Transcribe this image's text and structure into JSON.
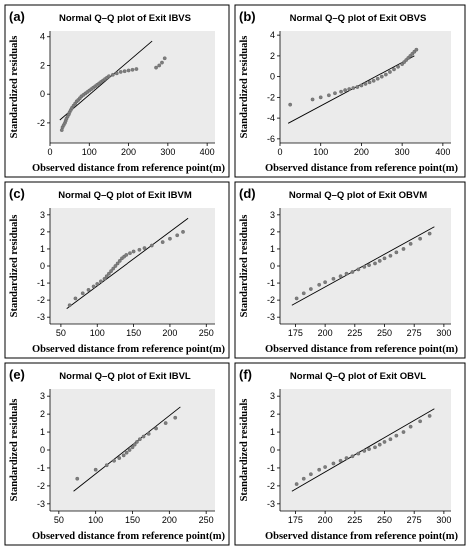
{
  "chart_data": [
    {
      "type": "scatter",
      "panel_label": "(a)",
      "title": "Normal Q–Q plot of Exit IBVS",
      "xlabel": "Observed distance from reference point(m)",
      "ylabel": "Standardized residuals",
      "xticks": [
        0,
        100,
        200,
        300,
        400
      ],
      "yticks": [
        -2,
        0,
        2,
        4
      ],
      "xlim": [
        0,
        420
      ],
      "ylim": [
        -3.4,
        4.4
      ],
      "line": {
        "x": [
          25,
          260
        ],
        "y": [
          -1.8,
          3.7
        ]
      },
      "x": [
        30,
        32,
        35,
        38,
        40,
        42,
        45,
        48,
        50,
        53,
        56,
        60,
        64,
        68,
        72,
        76,
        80,
        85,
        90,
        95,
        100,
        105,
        110,
        115,
        120,
        125,
        130,
        135,
        140,
        145,
        150,
        160,
        170,
        180,
        190,
        200,
        210,
        220,
        270,
        278,
        285,
        292
      ],
      "y": [
        -2.5,
        -2.3,
        -2.15,
        -2.0,
        -1.85,
        -1.7,
        -1.55,
        -1.4,
        -1.25,
        -1.1,
        -0.95,
        -0.8,
        -0.65,
        -0.5,
        -0.4,
        -0.28,
        -0.15,
        -0.05,
        0.05,
        0.15,
        0.25,
        0.35,
        0.45,
        0.55,
        0.65,
        0.75,
        0.85,
        0.95,
        1.05,
        1.15,
        1.25,
        1.35,
        1.45,
        1.55,
        1.6,
        1.65,
        1.7,
        1.75,
        1.85,
        2.0,
        2.2,
        2.5
      ]
    },
    {
      "type": "scatter",
      "panel_label": "(b)",
      "title": "Normal Q–Q plot of Exit OBVS",
      "xlabel": "Observed distance from reference point(m)",
      "ylabel": "Standardized residuals",
      "xticks": [
        0,
        100,
        200,
        300,
        400
      ],
      "yticks": [
        -6,
        -4,
        -2,
        0,
        2,
        4
      ],
      "xlim": [
        0,
        420
      ],
      "ylim": [
        -6.4,
        4.4
      ],
      "line": {
        "x": [
          20,
          330
        ],
        "y": [
          -4.5,
          2.0
        ]
      },
      "x": [
        25,
        80,
        100,
        120,
        135,
        150,
        160,
        170,
        180,
        190,
        200,
        210,
        220,
        230,
        240,
        250,
        260,
        270,
        280,
        290,
        300,
        305,
        310,
        315,
        320,
        325,
        330,
        335
      ],
      "y": [
        -2.7,
        -2.2,
        -2.0,
        -1.8,
        -1.6,
        -1.45,
        -1.3,
        -1.2,
        -1.1,
        -1.0,
        -0.85,
        -0.7,
        -0.55,
        -0.4,
        -0.2,
        0.0,
        0.2,
        0.45,
        0.7,
        0.95,
        1.2,
        1.4,
        1.6,
        1.8,
        2.0,
        2.2,
        2.4,
        2.6
      ]
    },
    {
      "type": "scatter",
      "panel_label": "(c)",
      "title": "Normal Q–Q plot of Exit IBVM",
      "xlabel": "Observed distance from reference point(m)",
      "ylabel": "Standardized residuals",
      "xticks": [
        50,
        100,
        150,
        200,
        250
      ],
      "yticks": [
        -3,
        -2,
        -1,
        0,
        1,
        2,
        3
      ],
      "xlim": [
        35,
        262
      ],
      "ylim": [
        -3.4,
        3.4
      ],
      "line": {
        "x": [
          58,
          225
        ],
        "y": [
          -2.5,
          2.8
        ]
      },
      "x": [
        62,
        70,
        80,
        88,
        95,
        100,
        105,
        110,
        113,
        116,
        119,
        122,
        125,
        128,
        131,
        134,
        137,
        140,
        145,
        150,
        158,
        165,
        175,
        190,
        200,
        210,
        218
      ],
      "y": [
        -2.3,
        -1.9,
        -1.6,
        -1.4,
        -1.2,
        -1.05,
        -0.9,
        -0.75,
        -0.6,
        -0.45,
        -0.3,
        -0.15,
        0.0,
        0.15,
        0.3,
        0.45,
        0.55,
        0.65,
        0.75,
        0.85,
        0.95,
        1.05,
        1.2,
        1.4,
        1.6,
        1.8,
        2.0
      ]
    },
    {
      "type": "scatter",
      "panel_label": "(d)",
      "title": "Normal Q–Q plot of Exit OBVM",
      "xlabel": "Observed distance from reference point(m)",
      "ylabel": "Standardized residuals",
      "xticks": [
        175,
        200,
        225,
        250,
        275,
        300
      ],
      "yticks": [
        -3,
        -2,
        -1,
        0,
        1,
        2,
        3
      ],
      "xlim": [
        162,
        306
      ],
      "ylim": [
        -3.4,
        3.4
      ],
      "line": {
        "x": [
          172,
          292
        ],
        "y": [
          -2.3,
          2.3
        ]
      },
      "x": [
        176,
        182,
        188,
        195,
        200,
        207,
        213,
        218,
        223,
        228,
        233,
        237,
        242,
        246,
        250,
        255,
        260,
        266,
        272,
        280,
        288
      ],
      "y": [
        -1.9,
        -1.6,
        -1.35,
        -1.1,
        -0.95,
        -0.75,
        -0.6,
        -0.45,
        -0.35,
        -0.2,
        -0.05,
        0.05,
        0.15,
        0.3,
        0.45,
        0.6,
        0.8,
        1.0,
        1.3,
        1.6,
        1.9
      ]
    },
    {
      "type": "scatter",
      "panel_label": "(e)",
      "title": "Normal Q–Q plot of Exit IBVL",
      "xlabel": "Observed distance from reference point(m)",
      "ylabel": "Standardized residuals",
      "xticks": [
        50,
        100,
        150,
        200,
        250
      ],
      "yticks": [
        -3,
        -2,
        -1,
        0,
        1,
        2,
        3
      ],
      "xlim": [
        38,
        262
      ],
      "ylim": [
        -3.4,
        3.4
      ],
      "line": {
        "x": [
          70,
          215
        ],
        "y": [
          -2.3,
          2.4
        ]
      },
      "x": [
        75,
        100,
        115,
        125,
        132,
        138,
        142,
        146,
        150,
        153,
        156,
        160,
        165,
        172,
        182,
        195,
        208
      ],
      "y": [
        -1.6,
        -1.1,
        -0.85,
        -0.6,
        -0.45,
        -0.3,
        -0.15,
        0.0,
        0.15,
        0.3,
        0.45,
        0.6,
        0.75,
        0.9,
        1.2,
        1.5,
        1.8
      ]
    },
    {
      "type": "scatter",
      "panel_label": "(f)",
      "title": "Normal Q–Q plot of Exit OBVL",
      "xlabel": "Observed distance from reference point(m)",
      "ylabel": "Standardized residuals",
      "xticks": [
        175,
        200,
        225,
        250,
        275,
        300
      ],
      "yticks": [
        -3,
        -2,
        -1,
        0,
        1,
        2,
        3
      ],
      "xlim": [
        162,
        306
      ],
      "ylim": [
        -3.4,
        3.4
      ],
      "line": {
        "x": [
          172,
          292
        ],
        "y": [
          -2.3,
          2.3
        ]
      },
      "x": [
        176,
        182,
        188,
        195,
        200,
        207,
        213,
        218,
        223,
        228,
        233,
        237,
        242,
        246,
        250,
        255,
        260,
        266,
        272,
        280,
        288
      ],
      "y": [
        -1.9,
        -1.6,
        -1.35,
        -1.1,
        -0.95,
        -0.75,
        -0.6,
        -0.45,
        -0.35,
        -0.2,
        -0.05,
        0.05,
        0.15,
        0.3,
        0.45,
        0.6,
        0.8,
        1.0,
        1.3,
        1.6,
        1.9
      ]
    }
  ]
}
